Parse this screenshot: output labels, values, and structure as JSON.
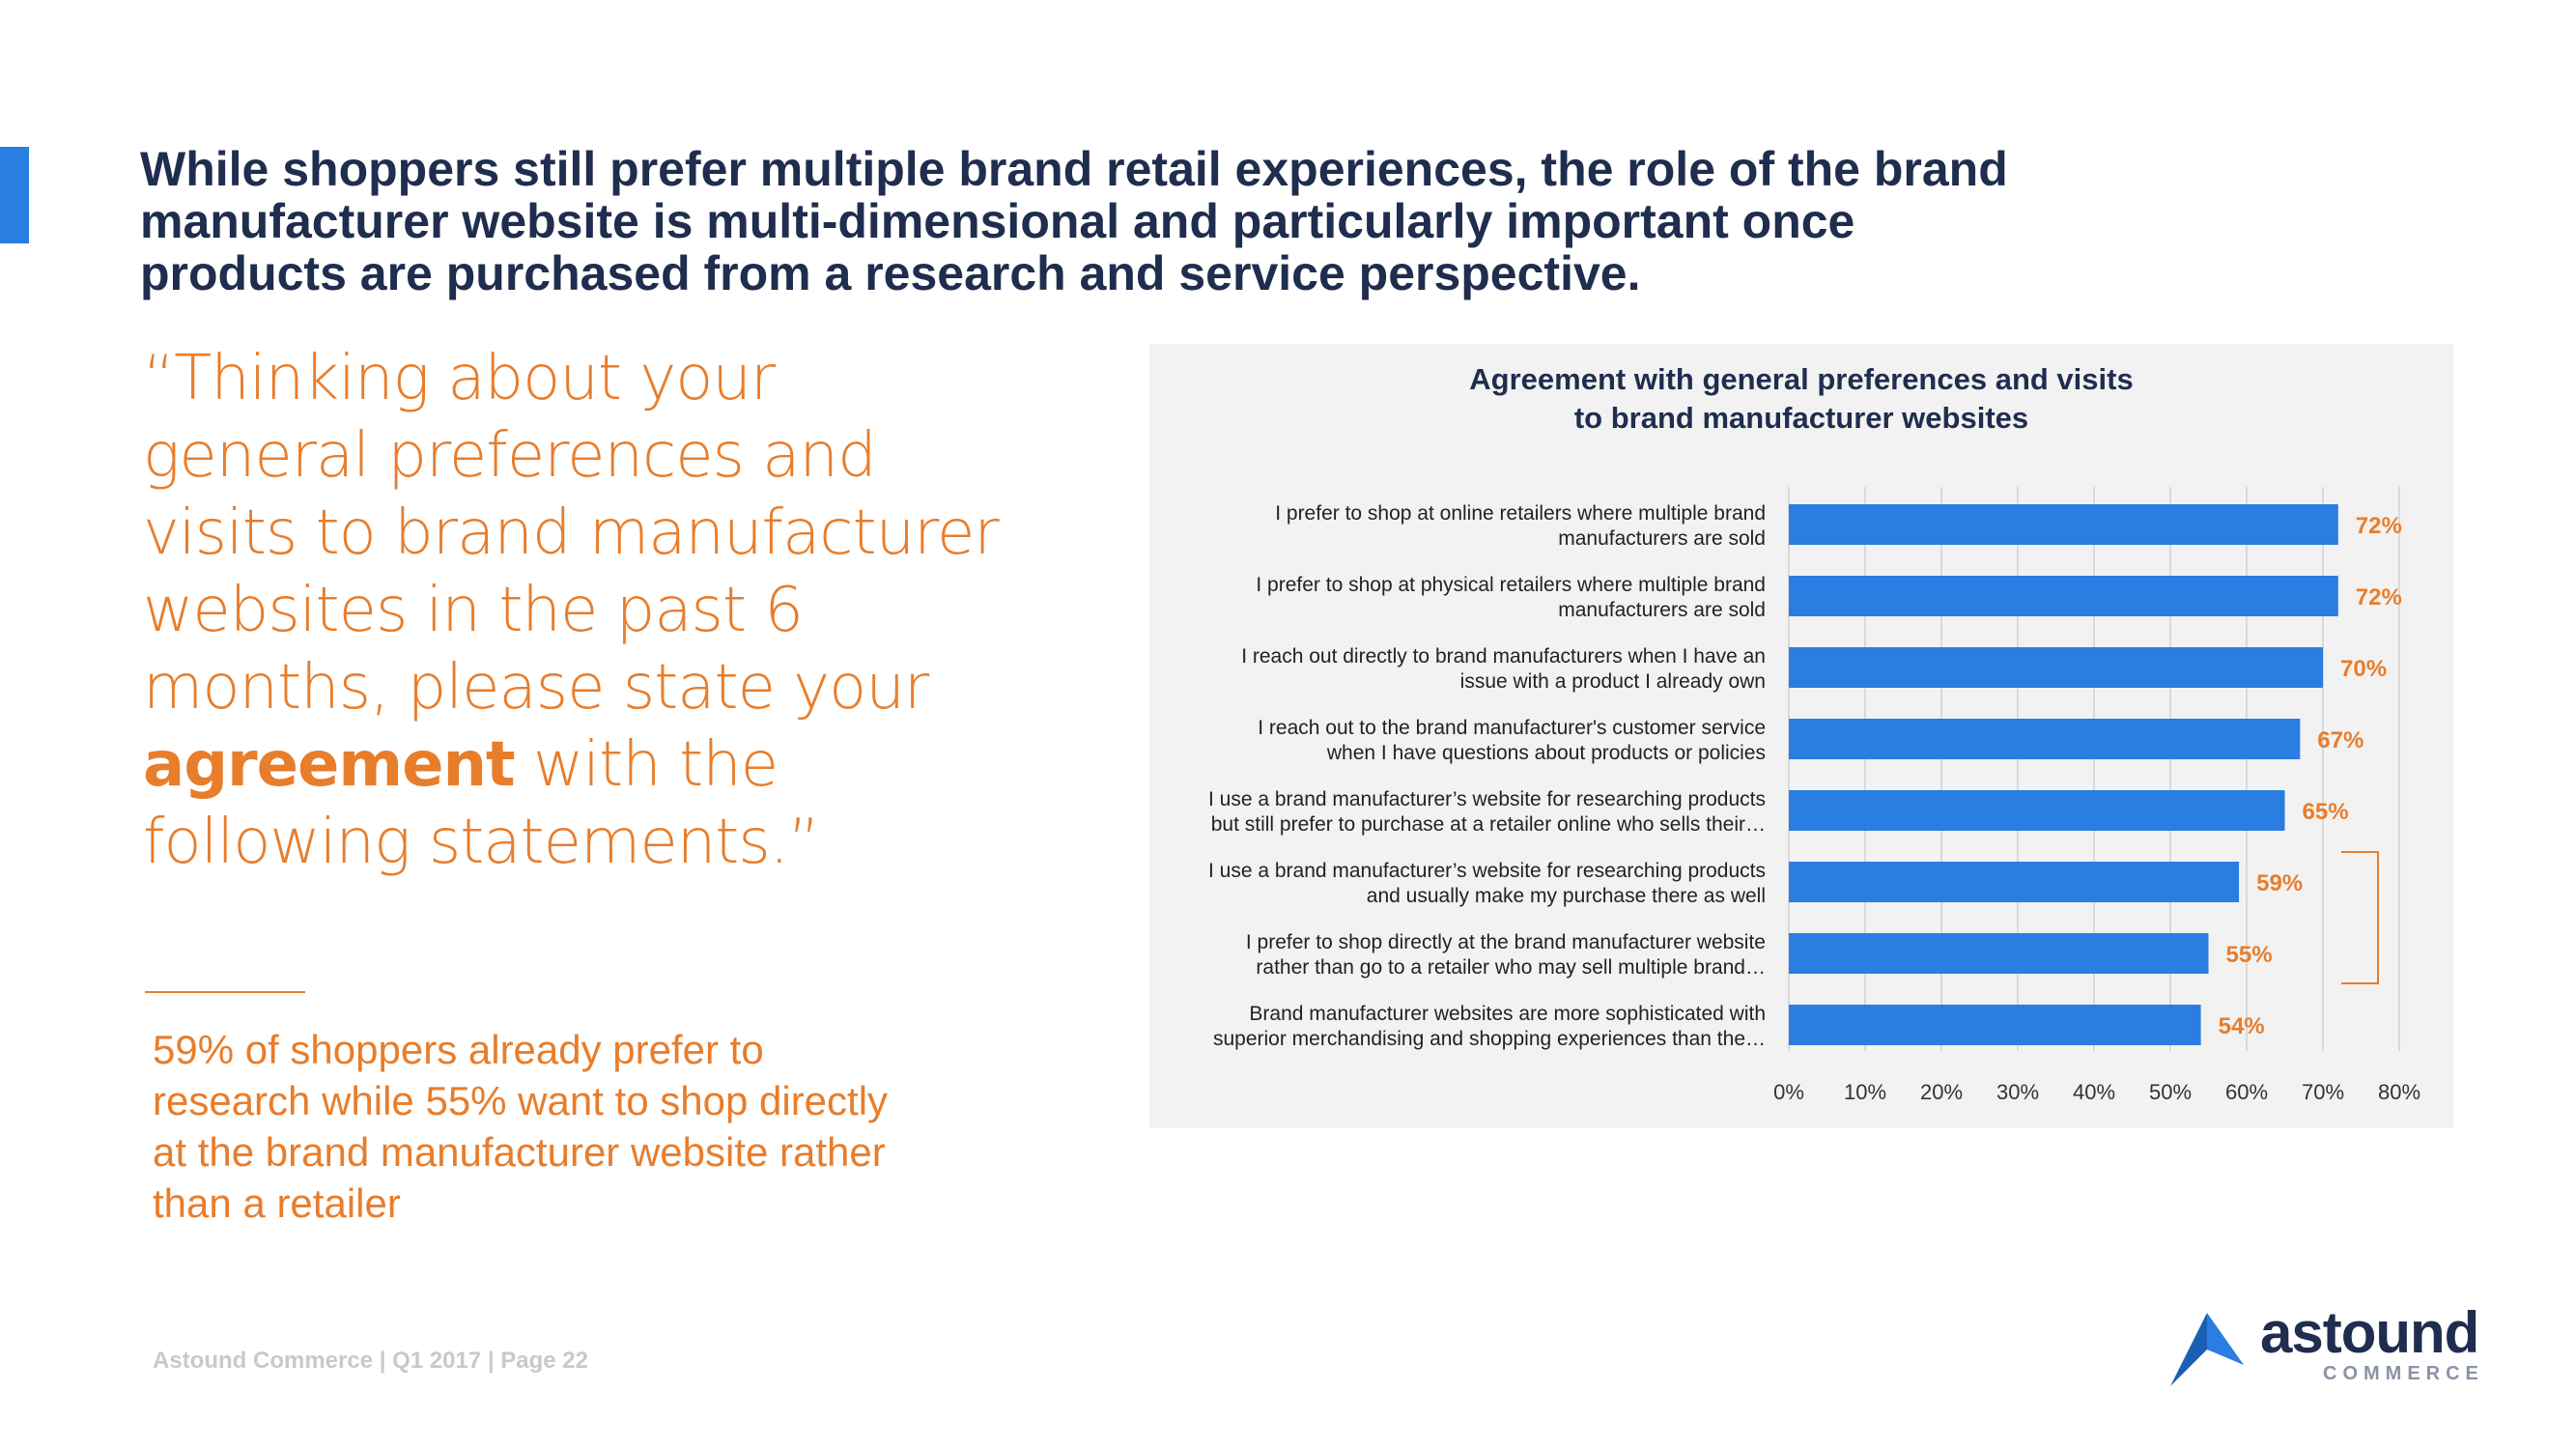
{
  "headline": "While shoppers still prefer multiple brand retail experiences, the role of the brand manufacturer website is multi-dimensional and particularly important once products are purchased from  a research and service perspective.",
  "quote": {
    "part1": "“Thinking about your general preferences and visits to brand manufacturer websites in the past 6 months, please state your ",
    "emphasis": "agreement",
    "part2": " with the following statements.”"
  },
  "insight": "59% of shoppers already prefer to research while 55% want to shop directly at the brand manufacturer website rather than a retailer",
  "footer": "Astound Commerce | Q1 2017 | Page 22",
  "logo": {
    "word": "astound",
    "sub": "COMMERCE"
  },
  "colors": {
    "bar": "#2a7de1",
    "label": "#e87d2b",
    "title": "#1f2d4e"
  },
  "chart_data": {
    "type": "bar",
    "orientation": "horizontal",
    "title": "Agreement with general preferences and visits to brand manufacturer websites",
    "categories": [
      [
        "I prefer to shop at online retailers where multiple brand",
        "manufacturers are sold"
      ],
      [
        "I prefer to shop at physical retailers where multiple brand",
        "manufacturers are sold"
      ],
      [
        "I reach out directly to brand manufacturers when I have an",
        "issue with a product I already own"
      ],
      [
        "I reach out to the brand manufacturer's customer service",
        "when I have questions about products or policies"
      ],
      [
        "I use a brand manufacturer’s website for researching products",
        "but still prefer to purchase at a retailer online who sells their…"
      ],
      [
        "I use a brand manufacturer’s website for researching products",
        "and usually make my purchase there as well"
      ],
      [
        "I prefer to shop directly at the brand manufacturer website",
        "rather than go to a retailer who may sell multiple brand…"
      ],
      [
        "Brand manufacturer websites are more sophisticated with",
        "superior merchandising and shopping experiences than the…"
      ]
    ],
    "values": [
      72,
      72,
      70,
      67,
      65,
      59,
      55,
      54
    ],
    "data_labels": [
      "72%",
      "72%",
      "70%",
      "67%",
      "65%",
      "59%",
      "55%",
      "54%"
    ],
    "xlim": [
      0,
      80
    ],
    "xticks": [
      0,
      10,
      20,
      30,
      40,
      50,
      60,
      70,
      80
    ],
    "xtick_labels": [
      "0%",
      "10%",
      "20%",
      "30%",
      "40%",
      "50%",
      "60%",
      "70%",
      "80%"
    ],
    "grid": true,
    "bracket_items": [
      5,
      6
    ]
  }
}
